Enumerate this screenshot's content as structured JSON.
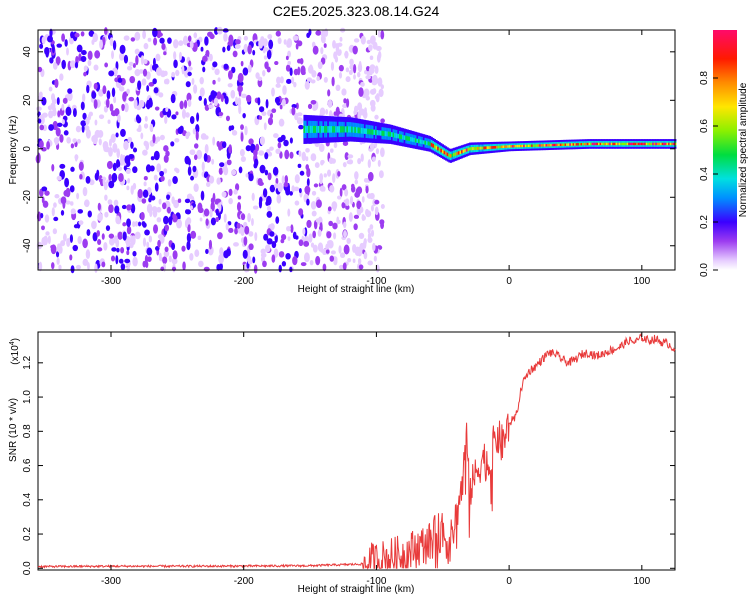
{
  "title": "C2E5.2025.323.08.14.G24",
  "chart_data": [
    {
      "type": "heatmap",
      "name": "spectrogram",
      "xlabel": "Height of straight line (km)",
      "ylabel": "Frequency (Hz)",
      "xlim": [
        -355,
        125
      ],
      "ylim": [
        -50,
        49
      ],
      "xticks": [
        -300,
        -200,
        -100,
        0,
        100
      ],
      "xtick_labels": [
        "-300",
        "-200",
        "-100",
        "0",
        "100"
      ],
      "yticks": [
        -40,
        -20,
        0,
        20,
        40
      ],
      "ytick_labels": [
        "-40",
        "-20",
        "0",
        "20",
        "40"
      ],
      "colorbar": {
        "label": "Normalized spectral amplitude",
        "range": [
          0,
          1
        ],
        "ticks": [
          0.0,
          0.2,
          0.4,
          0.6,
          0.8
        ],
        "tick_labels": [
          "0.0",
          "0.2",
          "0.4",
          "0.6",
          "0.8"
        ]
      },
      "features": {
        "noise_region_x": [
          -355,
          -120
        ],
        "signal_band_start_x": -155,
        "signal_band_center_y": [
          [
            -155,
            8
          ],
          [
            -120,
            8
          ],
          [
            -90,
            6
          ],
          [
            -60,
            2
          ],
          [
            -45,
            -3
          ],
          [
            -30,
            0
          ],
          [
            0,
            1
          ],
          [
            60,
            2
          ],
          [
            90,
            2
          ],
          [
            125,
            2
          ]
        ],
        "signal_band_halfwidth_y": [
          [
            -155,
            6
          ],
          [
            -120,
            5
          ],
          [
            -90,
            4
          ],
          [
            -50,
            3
          ],
          [
            0,
            2
          ],
          [
            125,
            2
          ]
        ],
        "peak_amplitude": 1.0
      }
    },
    {
      "type": "line",
      "name": "snr",
      "xlabel": "Height of straight line (km)",
      "ylabel": "SNR (10 * v/v)",
      "multiplier_label": "(x10",
      "multiplier_exp": "4",
      "multiplier_close": ")",
      "xlim": [
        -355,
        125
      ],
      "ylim": [
        -0.01,
        1.38
      ],
      "xticks": [
        -300,
        -200,
        -100,
        0,
        100
      ],
      "xtick_labels": [
        "-300",
        "-200",
        "-100",
        "0",
        "100"
      ],
      "yticks": [
        0.0,
        0.2,
        0.4,
        0.6,
        0.8,
        1.0,
        1.2
      ],
      "ytick_labels": [
        "0.0",
        "0.2",
        "0.4",
        "0.6",
        "0.8",
        "1.0",
        "1.2"
      ],
      "series": [
        {
          "name": "SNR",
          "color": "#e83a3a",
          "x": [
            -355,
            -300,
            -250,
            -200,
            -150,
            -110,
            -100,
            -90,
            -80,
            -70,
            -60,
            -55,
            -50,
            -45,
            -40,
            -35,
            -32,
            -30,
            -27,
            -25,
            -20,
            -15,
            -10,
            -5,
            0,
            5,
            10,
            15,
            20,
            25,
            30,
            35,
            40,
            45,
            50,
            55,
            60,
            65,
            70,
            75,
            80,
            85,
            90,
            95,
            100,
            105,
            110,
            115,
            120,
            125
          ],
          "values": [
            0.01,
            0.012,
            0.012,
            0.013,
            0.015,
            0.025,
            0.04,
            0.06,
            0.08,
            0.12,
            0.15,
            0.2,
            0.22,
            0.12,
            0.3,
            0.5,
            0.82,
            0.45,
            0.5,
            0.55,
            0.65,
            0.6,
            0.78,
            0.72,
            0.85,
            0.88,
            1.08,
            1.15,
            1.18,
            1.22,
            1.26,
            1.25,
            1.22,
            1.2,
            1.22,
            1.25,
            1.26,
            1.24,
            1.25,
            1.27,
            1.28,
            1.3,
            1.33,
            1.32,
            1.35,
            1.33,
            1.34,
            1.32,
            1.31,
            1.28
          ]
        }
      ]
    }
  ]
}
